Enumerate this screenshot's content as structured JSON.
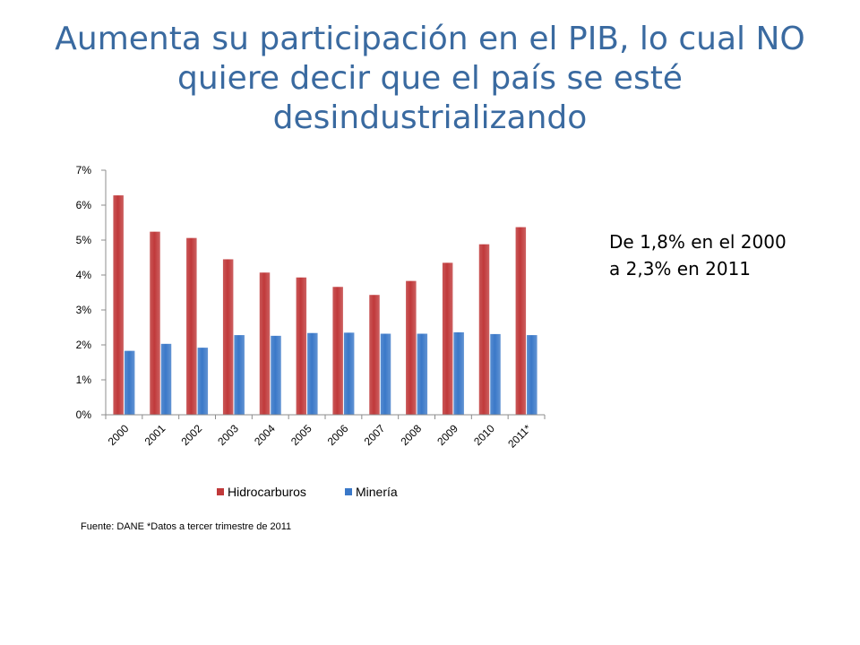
{
  "title": "Aumenta su participación en el PIB, lo cual NO quiere decir que el país se esté desindustrializando",
  "note": {
    "line1": "De 1,8%  en el 2000",
    "line2": "a 2,3% en 2011"
  },
  "source": "Fuente:  DANE *Datos a tercer trimestre de 2011",
  "colors": {
    "hidrocarburos": "#c0393a",
    "mineria": "#3a78c8",
    "axis": "#8c8c8c"
  },
  "chart_data": {
    "type": "bar",
    "categories": [
      "2000",
      "2001",
      "2002",
      "2003",
      "2004",
      "2005",
      "2006",
      "2007",
      "2008",
      "2009",
      "2010",
      "2011*"
    ],
    "series": [
      {
        "name": "Hidrocarburos",
        "values": [
          6.28,
          5.24,
          5.06,
          4.45,
          4.07,
          3.93,
          3.66,
          3.43,
          3.83,
          4.35,
          4.88,
          5.37
        ]
      },
      {
        "name": "Minería",
        "values": [
          1.83,
          2.03,
          1.92,
          2.28,
          2.26,
          2.34,
          2.35,
          2.32,
          2.32,
          2.36,
          2.31,
          2.28
        ]
      }
    ],
    "ylim": [
      0,
      7
    ],
    "yticks": [
      "0%",
      "1%",
      "2%",
      "3%",
      "4%",
      "5%",
      "6%",
      "7%"
    ],
    "ytick_values": [
      0,
      1,
      2,
      3,
      4,
      5,
      6,
      7
    ],
    "legend_position": "bottom",
    "grid": false
  }
}
